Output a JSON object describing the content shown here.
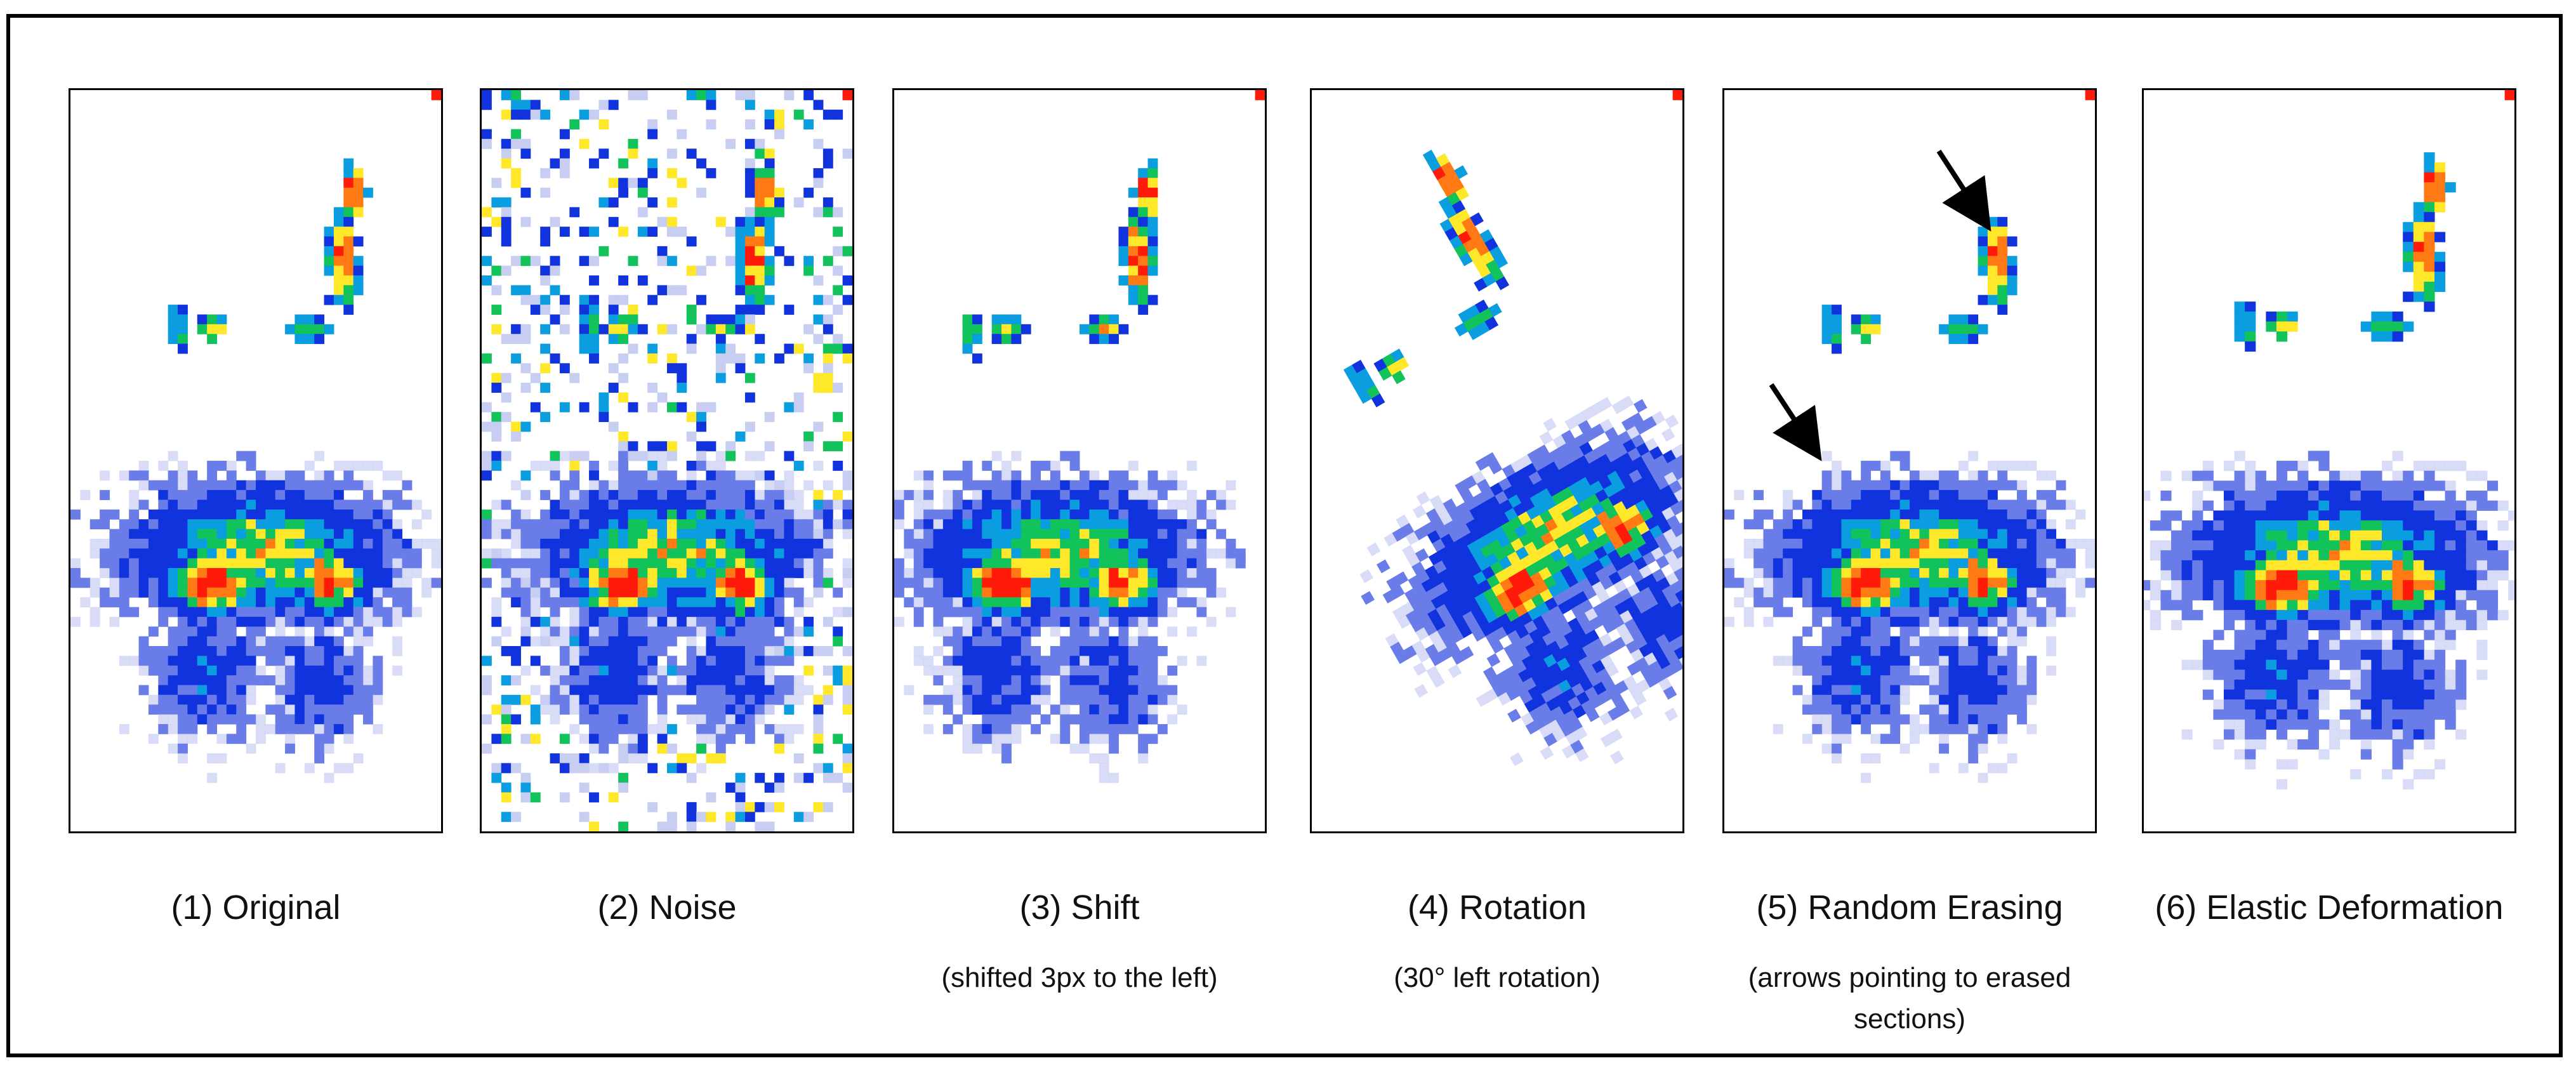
{
  "panels": [
    {
      "label": "(1) Original",
      "note": ""
    },
    {
      "label": "(2) Noise",
      "note": ""
    },
    {
      "label": "(3) Shift",
      "note": "(shifted 3px to the left)"
    },
    {
      "label": "(4) Rotation",
      "note": "(30° left rotation)"
    },
    {
      "label": "(5) Random Erasing",
      "note": "(arrows pointing to erased sections)"
    },
    {
      "label": "(6) Elastic Deformation",
      "note": ""
    }
  ],
  "colors": {
    "red": "#ff1a0a",
    "orange": "#ff7a14",
    "yellow": "#ffe82a",
    "green": "#12c25a",
    "cyan": "#0a9ee0",
    "blue": "#1133dd",
    "lightblue": "#6a7ce8",
    "faint": "#c8cdf2",
    "border": "#000000"
  },
  "icons": [
    "arrow-icon"
  ]
}
